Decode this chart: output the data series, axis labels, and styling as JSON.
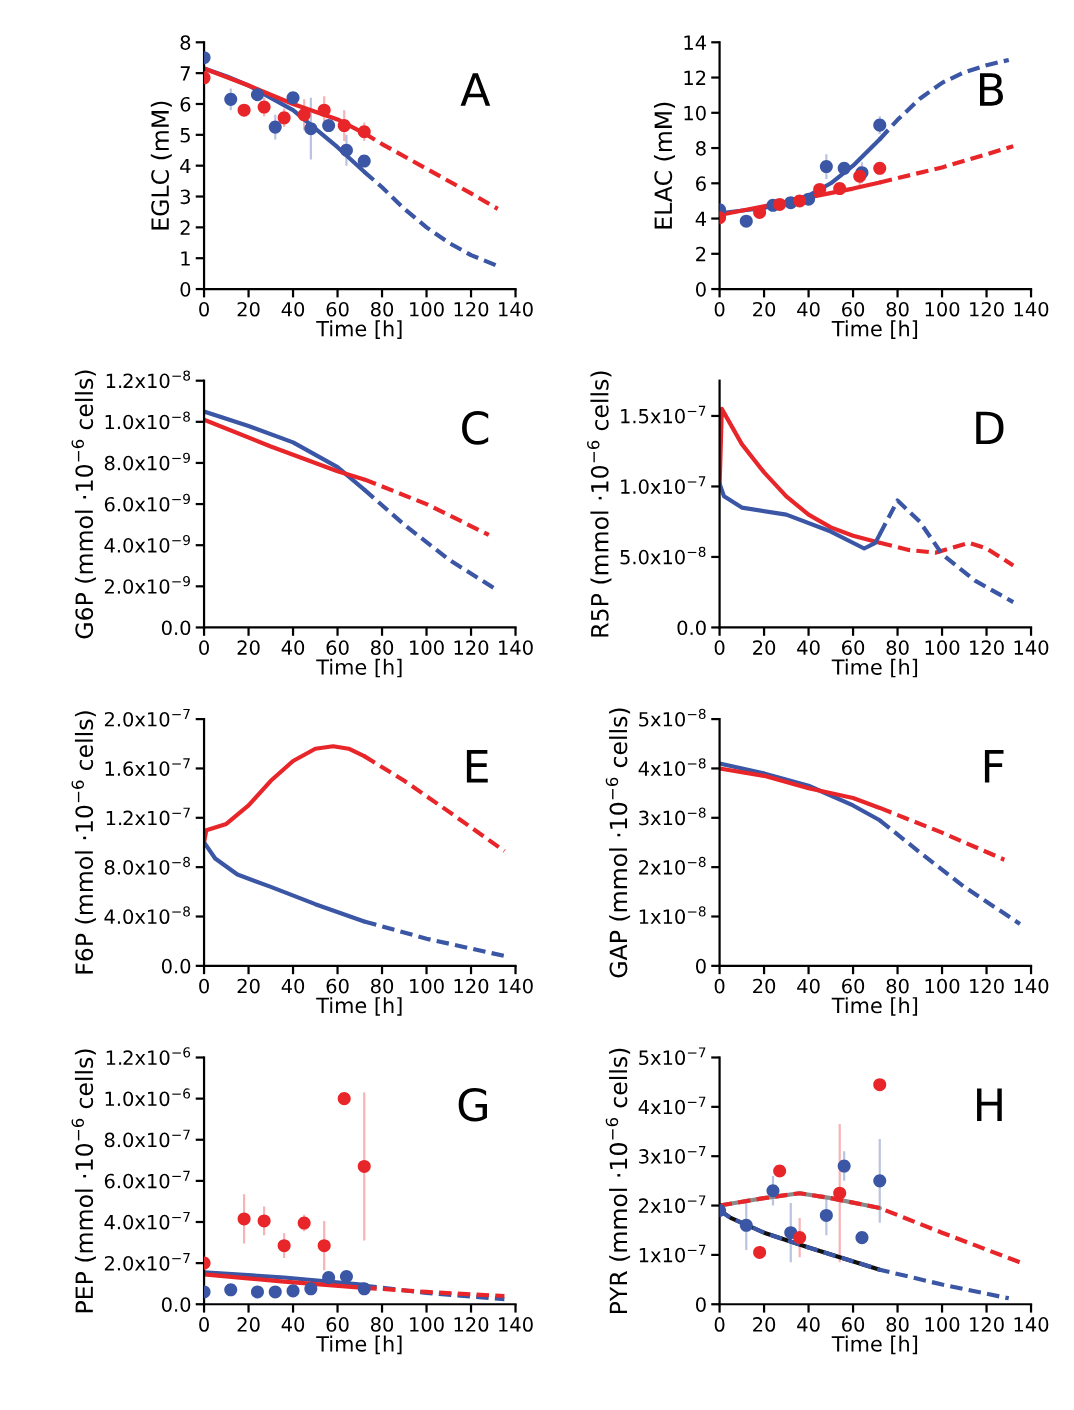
{
  "chart_data": [
    {
      "type": "line",
      "ylabel": "EGLC (mM)",
      "xlabel": "Time [h]",
      "annotations": [
        "A"
      ],
      "xlim": [
        0,
        140
      ],
      "xticks": [
        0,
        20,
        40,
        60,
        80,
        100,
        120,
        140
      ],
      "ylim": [
        0,
        8
      ],
      "yticks": [
        0,
        1,
        2,
        3,
        4,
        5,
        6,
        7,
        8
      ],
      "grid": false,
      "series": [
        {
          "color": "#3a56a5",
          "line_style": "solid",
          "x": [
            0,
            10,
            20,
            30,
            40,
            50,
            60,
            72
          ],
          "values": [
            7.15,
            6.9,
            6.6,
            6.2,
            5.8,
            5.2,
            4.6,
            3.8
          ]
        },
        {
          "type": "line",
          "color": "#3a56a5",
          "line_style": "dashed",
          "x": [
            72,
            80,
            90,
            100,
            110,
            120,
            132
          ],
          "values": [
            3.8,
            3.3,
            2.6,
            2.0,
            1.5,
            1.1,
            0.75
          ]
        },
        {
          "type": "line",
          "color": "#e8262a",
          "line_style": "solid",
          "x": [
            0,
            20,
            40,
            60,
            72
          ],
          "values": [
            7.15,
            6.6,
            6.0,
            5.5,
            5.05
          ]
        },
        {
          "type": "line",
          "color": "#e8262a",
          "line_style": "dashed",
          "x": [
            72,
            80,
            100,
            120,
            132
          ],
          "values": [
            5.05,
            4.7,
            3.9,
            3.1,
            2.6
          ]
        },
        {
          "type": "scatter",
          "color": "#3a56a5",
          "marker": "circle",
          "x": [
            0,
            12,
            24,
            32,
            40,
            48,
            56,
            64,
            72
          ],
          "values": [
            7.5,
            6.15,
            6.3,
            5.25,
            6.2,
            5.2,
            5.3,
            4.5,
            4.15
          ],
          "errors": [
            null,
            0.35,
            0.2,
            0.4,
            null,
            1.0,
            null,
            0.5,
            null
          ]
        },
        {
          "type": "scatter",
          "color": "#e8262a",
          "marker": "circle",
          "x": [
            0,
            18,
            27,
            36,
            45,
            54,
            63,
            72
          ],
          "values": [
            6.85,
            5.8,
            5.9,
            5.55,
            5.65,
            5.8,
            5.3,
            5.1
          ],
          "errors": [
            null,
            0.2,
            0.3,
            0.3,
            0.5,
            0.45,
            0.5,
            0.3
          ]
        }
      ]
    },
    {
      "type": "line",
      "ylabel": "ELAC (mM)",
      "xlabel": "Time [h]",
      "annotations": [
        "B"
      ],
      "xlim": [
        0,
        140
      ],
      "xticks": [
        0,
        20,
        40,
        60,
        80,
        100,
        120,
        140
      ],
      "ylim": [
        0,
        14
      ],
      "yticks": [
        0,
        2,
        4,
        6,
        8,
        10,
        12,
        14
      ],
      "grid": false,
      "series": [
        {
          "color": "#3a56a5",
          "line_style": "solid",
          "x": [
            0,
            20,
            40,
            50,
            60,
            72
          ],
          "values": [
            4.3,
            4.6,
            5.3,
            6.0,
            7.0,
            8.5
          ]
        },
        {
          "type": "line",
          "color": "#3a56a5",
          "line_style": "dashed",
          "x": [
            72,
            80,
            90,
            100,
            110,
            120,
            130
          ],
          "values": [
            8.5,
            9.6,
            10.8,
            11.7,
            12.3,
            12.7,
            13.0
          ]
        },
        {
          "type": "line",
          "color": "#e8262a",
          "line_style": "solid",
          "x": [
            0,
            20,
            40,
            60,
            72
          ],
          "values": [
            4.2,
            4.7,
            5.2,
            5.7,
            6.05
          ]
        },
        {
          "type": "line",
          "color": "#e8262a",
          "line_style": "dashed",
          "x": [
            72,
            100,
            132
          ],
          "values": [
            6.05,
            6.9,
            8.1
          ]
        },
        {
          "type": "scatter",
          "color": "#3a56a5",
          "marker": "circle",
          "x": [
            0,
            12,
            24,
            32,
            40,
            48,
            56,
            64,
            72
          ],
          "values": [
            4.5,
            3.85,
            4.75,
            4.9,
            5.1,
            6.95,
            6.85,
            6.6,
            9.3
          ],
          "errors": [
            null,
            null,
            null,
            0.3,
            null,
            0.7,
            null,
            0.6,
            0.5
          ]
        },
        {
          "type": "scatter",
          "color": "#e8262a",
          "marker": "circle",
          "x": [
            0,
            18,
            27,
            36,
            45,
            54,
            63,
            72
          ],
          "values": [
            4.05,
            4.35,
            4.8,
            5.0,
            5.65,
            5.7,
            6.4,
            6.85
          ],
          "errors": [
            null,
            0.2,
            0.2,
            null,
            0.2,
            null,
            0.6,
            null
          ]
        }
      ]
    },
    {
      "type": "line",
      "ylabel": "G6P (mmol ·10$^{−6}$ cells)",
      "xlabel": "Time [h]",
      "annotations": [
        "C"
      ],
      "xlim": [
        0,
        140
      ],
      "xticks": [
        0,
        20,
        40,
        60,
        80,
        100,
        120,
        140
      ],
      "ylim": [
        0,
        1.2e-08
      ],
      "yticks": [
        {
          "value": 0,
          "label": "0.0"
        },
        {
          "value": 2e-09,
          "label": "2.0x10$^{−9}$"
        },
        {
          "value": 4e-09,
          "label": "4.0x10$^{−9}$"
        },
        {
          "value": 6e-09,
          "label": "6.0x10$^{−9}$"
        },
        {
          "value": 8e-09,
          "label": "8.0x10$^{−9}$"
        },
        {
          "value": 1e-08,
          "label": "1.0x10$^{−8}$"
        },
        {
          "value": 1.2e-08,
          "label": "1.2x10$^{−8}$"
        }
      ],
      "grid": false,
      "series": [
        {
          "color": "#3a56a5",
          "line_style": "solid",
          "x": [
            0,
            20,
            40,
            60,
            72
          ],
          "values": [
            1.05e-08,
            9.8e-09,
            9e-09,
            7.8e-09,
            6.7e-09
          ]
        },
        {
          "type": "line",
          "color": "#3a56a5",
          "line_style": "dashed",
          "x": [
            72,
            90,
            110,
            132
          ],
          "values": [
            6.7e-09,
            5e-09,
            3.3e-09,
            1.8e-09
          ]
        },
        {
          "type": "line",
          "color": "#e8262a",
          "line_style": "solid",
          "x": [
            0,
            30,
            60,
            72
          ],
          "values": [
            1.01e-08,
            8.8e-09,
            7.6e-09,
            7.2e-09
          ]
        },
        {
          "type": "line",
          "color": "#e8262a",
          "line_style": "dashed",
          "x": [
            72,
            100,
            128
          ],
          "values": [
            7.2e-09,
            6e-09,
            4.5e-09
          ]
        }
      ]
    },
    {
      "type": "line",
      "ylabel": "R5P (mmol ·10$^{−6}$ cells)",
      "xlabel": "Time [h]",
      "annotations": [
        "D"
      ],
      "xlim": [
        0,
        140
      ],
      "xticks": [
        0,
        20,
        40,
        60,
        80,
        100,
        120,
        140
      ],
      "ylim": [
        0,
        1.75e-07
      ],
      "yticks": [
        {
          "value": 0,
          "label": "0.0"
        },
        {
          "value": 5e-08,
          "label": "5.0x10$^{−8}$"
        },
        {
          "value": 1e-07,
          "label": "1.0x10$^{−7}$"
        },
        {
          "value": 1.5e-07,
          "label": "1.5x10$^{−7}$"
        }
      ],
      "grid": false,
      "series": [
        {
          "color": "#e8262a",
          "line_style": "solid",
          "x": [
            0,
            1,
            10,
            20,
            30,
            40,
            50,
            60,
            72
          ],
          "values": [
            1e-07,
            1.55e-07,
            1.3e-07,
            1.1e-07,
            9.3e-08,
            8e-08,
            7.1e-08,
            6.5e-08,
            6e-08
          ]
        },
        {
          "type": "line",
          "color": "#e8262a",
          "line_style": "dashed",
          "x": [
            72,
            85,
            97,
            112,
            120,
            132
          ],
          "values": [
            6e-08,
            5.5e-08,
            5.3e-08,
            6e-08,
            5.6e-08,
            4.4e-08
          ]
        },
        {
          "type": "line",
          "color": "#3a56a5",
          "line_style": "solid",
          "x": [
            0,
            2,
            10,
            30,
            50,
            65,
            70,
            72
          ],
          "values": [
            1.02e-07,
            9.3e-08,
            8.5e-08,
            8e-08,
            6.8e-08,
            5.6e-08,
            6e-08,
            6.6e-08
          ]
        },
        {
          "type": "line",
          "color": "#3a56a5",
          "line_style": "dashed",
          "x": [
            72,
            80,
            90,
            100,
            115,
            132
          ],
          "values": [
            6.6e-08,
            9e-08,
            7.5e-08,
            5.2e-08,
            3.3e-08,
            1.8e-08
          ]
        }
      ]
    },
    {
      "type": "line",
      "ylabel": "F6P (mmol ·10$^{−6}$ cells)",
      "xlabel": "Time [h]",
      "annotations": [
        "E"
      ],
      "xlim": [
        0,
        140
      ],
      "xticks": [
        0,
        20,
        40,
        60,
        80,
        100,
        120,
        140
      ],
      "ylim": [
        0,
        2e-07
      ],
      "yticks": [
        {
          "value": 0,
          "label": "0.0"
        },
        {
          "value": 4e-08,
          "label": "4.0x10$^{−8}$"
        },
        {
          "value": 8e-08,
          "label": "8.0x10$^{−8}$"
        },
        {
          "value": 1.2e-07,
          "label": "1.2x10$^{−7}$"
        },
        {
          "value": 1.6e-07,
          "label": "1.6x10$^{−7}$"
        },
        {
          "value": 2e-07,
          "label": "2.0x10$^{−7}$"
        }
      ],
      "grid": false,
      "series": [
        {
          "color": "#e8262a",
          "line_style": "solid",
          "x": [
            0,
            1,
            10,
            20,
            30,
            40,
            50,
            58,
            65,
            72
          ],
          "values": [
            1e-07,
            1.1e-07,
            1.15e-07,
            1.3e-07,
            1.5e-07,
            1.66e-07,
            1.76e-07,
            1.78e-07,
            1.76e-07,
            1.7e-07
          ]
        },
        {
          "type": "line",
          "color": "#e8262a",
          "line_style": "dashed",
          "x": [
            72,
            90,
            110,
            135
          ],
          "values": [
            1.7e-07,
            1.5e-07,
            1.25e-07,
            9.3e-08
          ]
        },
        {
          "type": "line",
          "color": "#3a56a5",
          "line_style": "solid",
          "x": [
            0,
            5,
            15,
            30,
            50,
            72
          ],
          "values": [
            1e-07,
            8.7e-08,
            7.4e-08,
            6.4e-08,
            5e-08,
            3.6e-08
          ]
        },
        {
          "type": "line",
          "color": "#3a56a5",
          "line_style": "dashed",
          "x": [
            72,
            100,
            135
          ],
          "values": [
            3.6e-08,
            2.2e-08,
            8e-09
          ]
        }
      ]
    },
    {
      "type": "line",
      "ylabel": "GAP (mmol ·10$^{−6}$ cells)",
      "xlabel": "Time [h]",
      "annotations": [
        "F"
      ],
      "xlim": [
        0,
        140
      ],
      "xticks": [
        0,
        20,
        40,
        60,
        80,
        100,
        120,
        140
      ],
      "ylim": [
        0,
        5e-08
      ],
      "yticks": [
        0,
        {
          "value": 1e-08,
          "label": "1x10$^{−8}$"
        },
        {
          "value": 2e-08,
          "label": "2x10$^{−8}$"
        },
        {
          "value": 3e-08,
          "label": "3x10$^{−8}$"
        },
        {
          "value": 4e-08,
          "label": "4x10$^{−8}$"
        },
        {
          "value": 5e-08,
          "label": "5x10$^{−8}$"
        }
      ],
      "grid": false,
      "series": [
        {
          "color": "#3a56a5",
          "line_style": "solid",
          "x": [
            0,
            20,
            40,
            60,
            72
          ],
          "values": [
            4.1e-08,
            3.9e-08,
            3.65e-08,
            3.25e-08,
            2.95e-08
          ]
        },
        {
          "type": "line",
          "color": "#3a56a5",
          "line_style": "dashed",
          "x": [
            72,
            90,
            110,
            135
          ],
          "values": [
            2.95e-08,
            2.3e-08,
            1.6e-08,
            8.5e-09
          ]
        },
        {
          "type": "line",
          "color": "#e8262a",
          "line_style": "solid",
          "x": [
            0,
            20,
            40,
            60,
            72
          ],
          "values": [
            4e-08,
            3.85e-08,
            3.6e-08,
            3.4e-08,
            3.2e-08
          ]
        },
        {
          "type": "line",
          "color": "#e8262a",
          "line_style": "dashed",
          "x": [
            72,
            100,
            128
          ],
          "values": [
            3.2e-08,
            2.7e-08,
            2.15e-08
          ]
        }
      ]
    },
    {
      "type": "line",
      "ylabel": "PEP (mmol ·10$^{−6}$ cells)",
      "xlabel": "Time [h]",
      "annotations": [
        "G"
      ],
      "xlim": [
        0,
        140
      ],
      "xticks": [
        0,
        20,
        40,
        60,
        80,
        100,
        120,
        140
      ],
      "ylim": [
        0,
        1.2e-06
      ],
      "yticks": [
        {
          "value": 0,
          "label": "0.0"
        },
        {
          "value": 2e-07,
          "label": "2.0x10$^{−7}$"
        },
        {
          "value": 4e-07,
          "label": "4.0x10$^{−7}$"
        },
        {
          "value": 6e-07,
          "label": "6.0x10$^{−7}$"
        },
        {
          "value": 8e-07,
          "label": "8.0x10$^{−7}$"
        },
        {
          "value": 1e-06,
          "label": "1.0x10$^{−6}$"
        },
        {
          "value": 1.2e-06,
          "label": "1.2x10$^{−6}$"
        }
      ],
      "grid": false,
      "series": [
        {
          "color": "#3a56a5",
          "line_style": "solid",
          "x": [
            0,
            36,
            72
          ],
          "values": [
            1.55e-07,
            1.3e-07,
            9.5e-08
          ]
        },
        {
          "type": "line",
          "color": "#3a56a5",
          "line_style": "dashed",
          "x": [
            72,
            100,
            135
          ],
          "values": [
            9e-08,
            5.5e-08,
            2.5e-08
          ]
        },
        {
          "type": "line",
          "color": "#e8262a",
          "line_style": "solid",
          "x": [
            0,
            36,
            72
          ],
          "values": [
            1.45e-07,
            1.1e-07,
            8e-08
          ]
        },
        {
          "type": "line",
          "color": "#e8262a",
          "line_style": "dashed",
          "x": [
            72,
            100,
            135
          ],
          "values": [
            8e-08,
            6e-08,
            4e-08
          ]
        },
        {
          "type": "scatter",
          "color": "#3a56a5",
          "marker": "circle",
          "x": [
            0,
            12,
            24,
            32,
            40,
            48,
            56,
            64,
            72
          ],
          "values": [
            6e-08,
            7e-08,
            6e-08,
            6e-08,
            6.5e-08,
            7.5e-08,
            1.3e-07,
            1.35e-07,
            7.5e-08
          ]
        },
        {
          "type": "scatter",
          "color": "#e8262a",
          "marker": "circle",
          "x": [
            0,
            18,
            27,
            36,
            45,
            54,
            63,
            72
          ],
          "values": [
            2e-07,
            4.15e-07,
            4.05e-07,
            2.85e-07,
            3.95e-07,
            2.85e-07,
            1e-06,
            6.7e-07
          ],
          "errors": [
            null,
            1.2e-07,
            7e-08,
            6e-08,
            4e-08,
            1.2e-07,
            null,
            3.6e-07
          ]
        }
      ]
    },
    {
      "type": "line",
      "ylabel": "PYR (mmol ·10$^{−6}$ cells)",
      "xlabel": "Time [h]",
      "annotations": [
        "H"
      ],
      "xlim": [
        0,
        140
      ],
      "xticks": [
        0,
        20,
        40,
        60,
        80,
        100,
        120,
        140
      ],
      "ylim": [
        0,
        5e-07
      ],
      "yticks": [
        0,
        {
          "value": 1e-07,
          "label": "1x10$^{−7}$"
        },
        {
          "value": 2e-07,
          "label": "2x10$^{−7}$"
        },
        {
          "value": 3e-07,
          "label": "3x10$^{−7}$"
        },
        {
          "value": 4e-07,
          "label": "4x10$^{−7}$"
        },
        {
          "value": 5e-07,
          "label": "5x10$^{−7}$"
        }
      ],
      "grid": false,
      "series": [
        {
          "type": "line",
          "color": "#8a8a8a",
          "line_style": "solid",
          "x": [
            0,
            20,
            36,
            50,
            72
          ],
          "values": [
            2e-07,
            2.15e-07,
            2.25e-07,
            2.15e-07,
            1.95e-07
          ]
        },
        {
          "color": "#e8262a",
          "line_style": "dashed",
          "x": [
            0,
            20,
            36,
            50,
            72,
            100,
            135
          ],
          "values": [
            2e-07,
            2.15e-07,
            2.25e-07,
            2.15e-07,
            1.95e-07,
            1.45e-07,
            8.5e-08
          ]
        },
        {
          "type": "line",
          "color": "#111111",
          "line_style": "solid",
          "x": [
            0,
            5,
            20,
            40,
            72
          ],
          "values": [
            1.9e-07,
            1.75e-07,
            1.45e-07,
            1.15e-07,
            7e-08
          ]
        },
        {
          "type": "line",
          "color": "#3a56a5",
          "line_style": "dashed",
          "x": [
            0,
            5,
            20,
            40,
            72,
            100,
            130
          ],
          "values": [
            1.9e-07,
            1.75e-07,
            1.45e-07,
            1.15e-07,
            7e-08,
            4e-08,
            1.2e-08
          ]
        },
        {
          "type": "scatter",
          "color": "#3a56a5",
          "marker": "circle",
          "x": [
            0,
            12,
            24,
            32,
            48,
            56,
            64,
            72
          ],
          "values": [
            1.9e-07,
            1.6e-07,
            2.3e-07,
            1.45e-07,
            1.8e-07,
            2.8e-07,
            1.35e-07,
            2.5e-07
          ],
          "errors": [
            null,
            5e-08,
            3e-08,
            6e-08,
            4e-08,
            3e-08,
            null,
            8.5e-08
          ]
        },
        {
          "type": "scatter",
          "color": "#e8262a",
          "marker": "circle",
          "x": [
            18,
            27,
            36,
            54,
            72
          ],
          "values": [
            1.05e-07,
            2.7e-07,
            1.35e-07,
            2.25e-07,
            4.45e-07
          ],
          "errors": [
            null,
            null,
            4e-08,
            1.4e-07,
            null
          ]
        }
      ]
    }
  ]
}
